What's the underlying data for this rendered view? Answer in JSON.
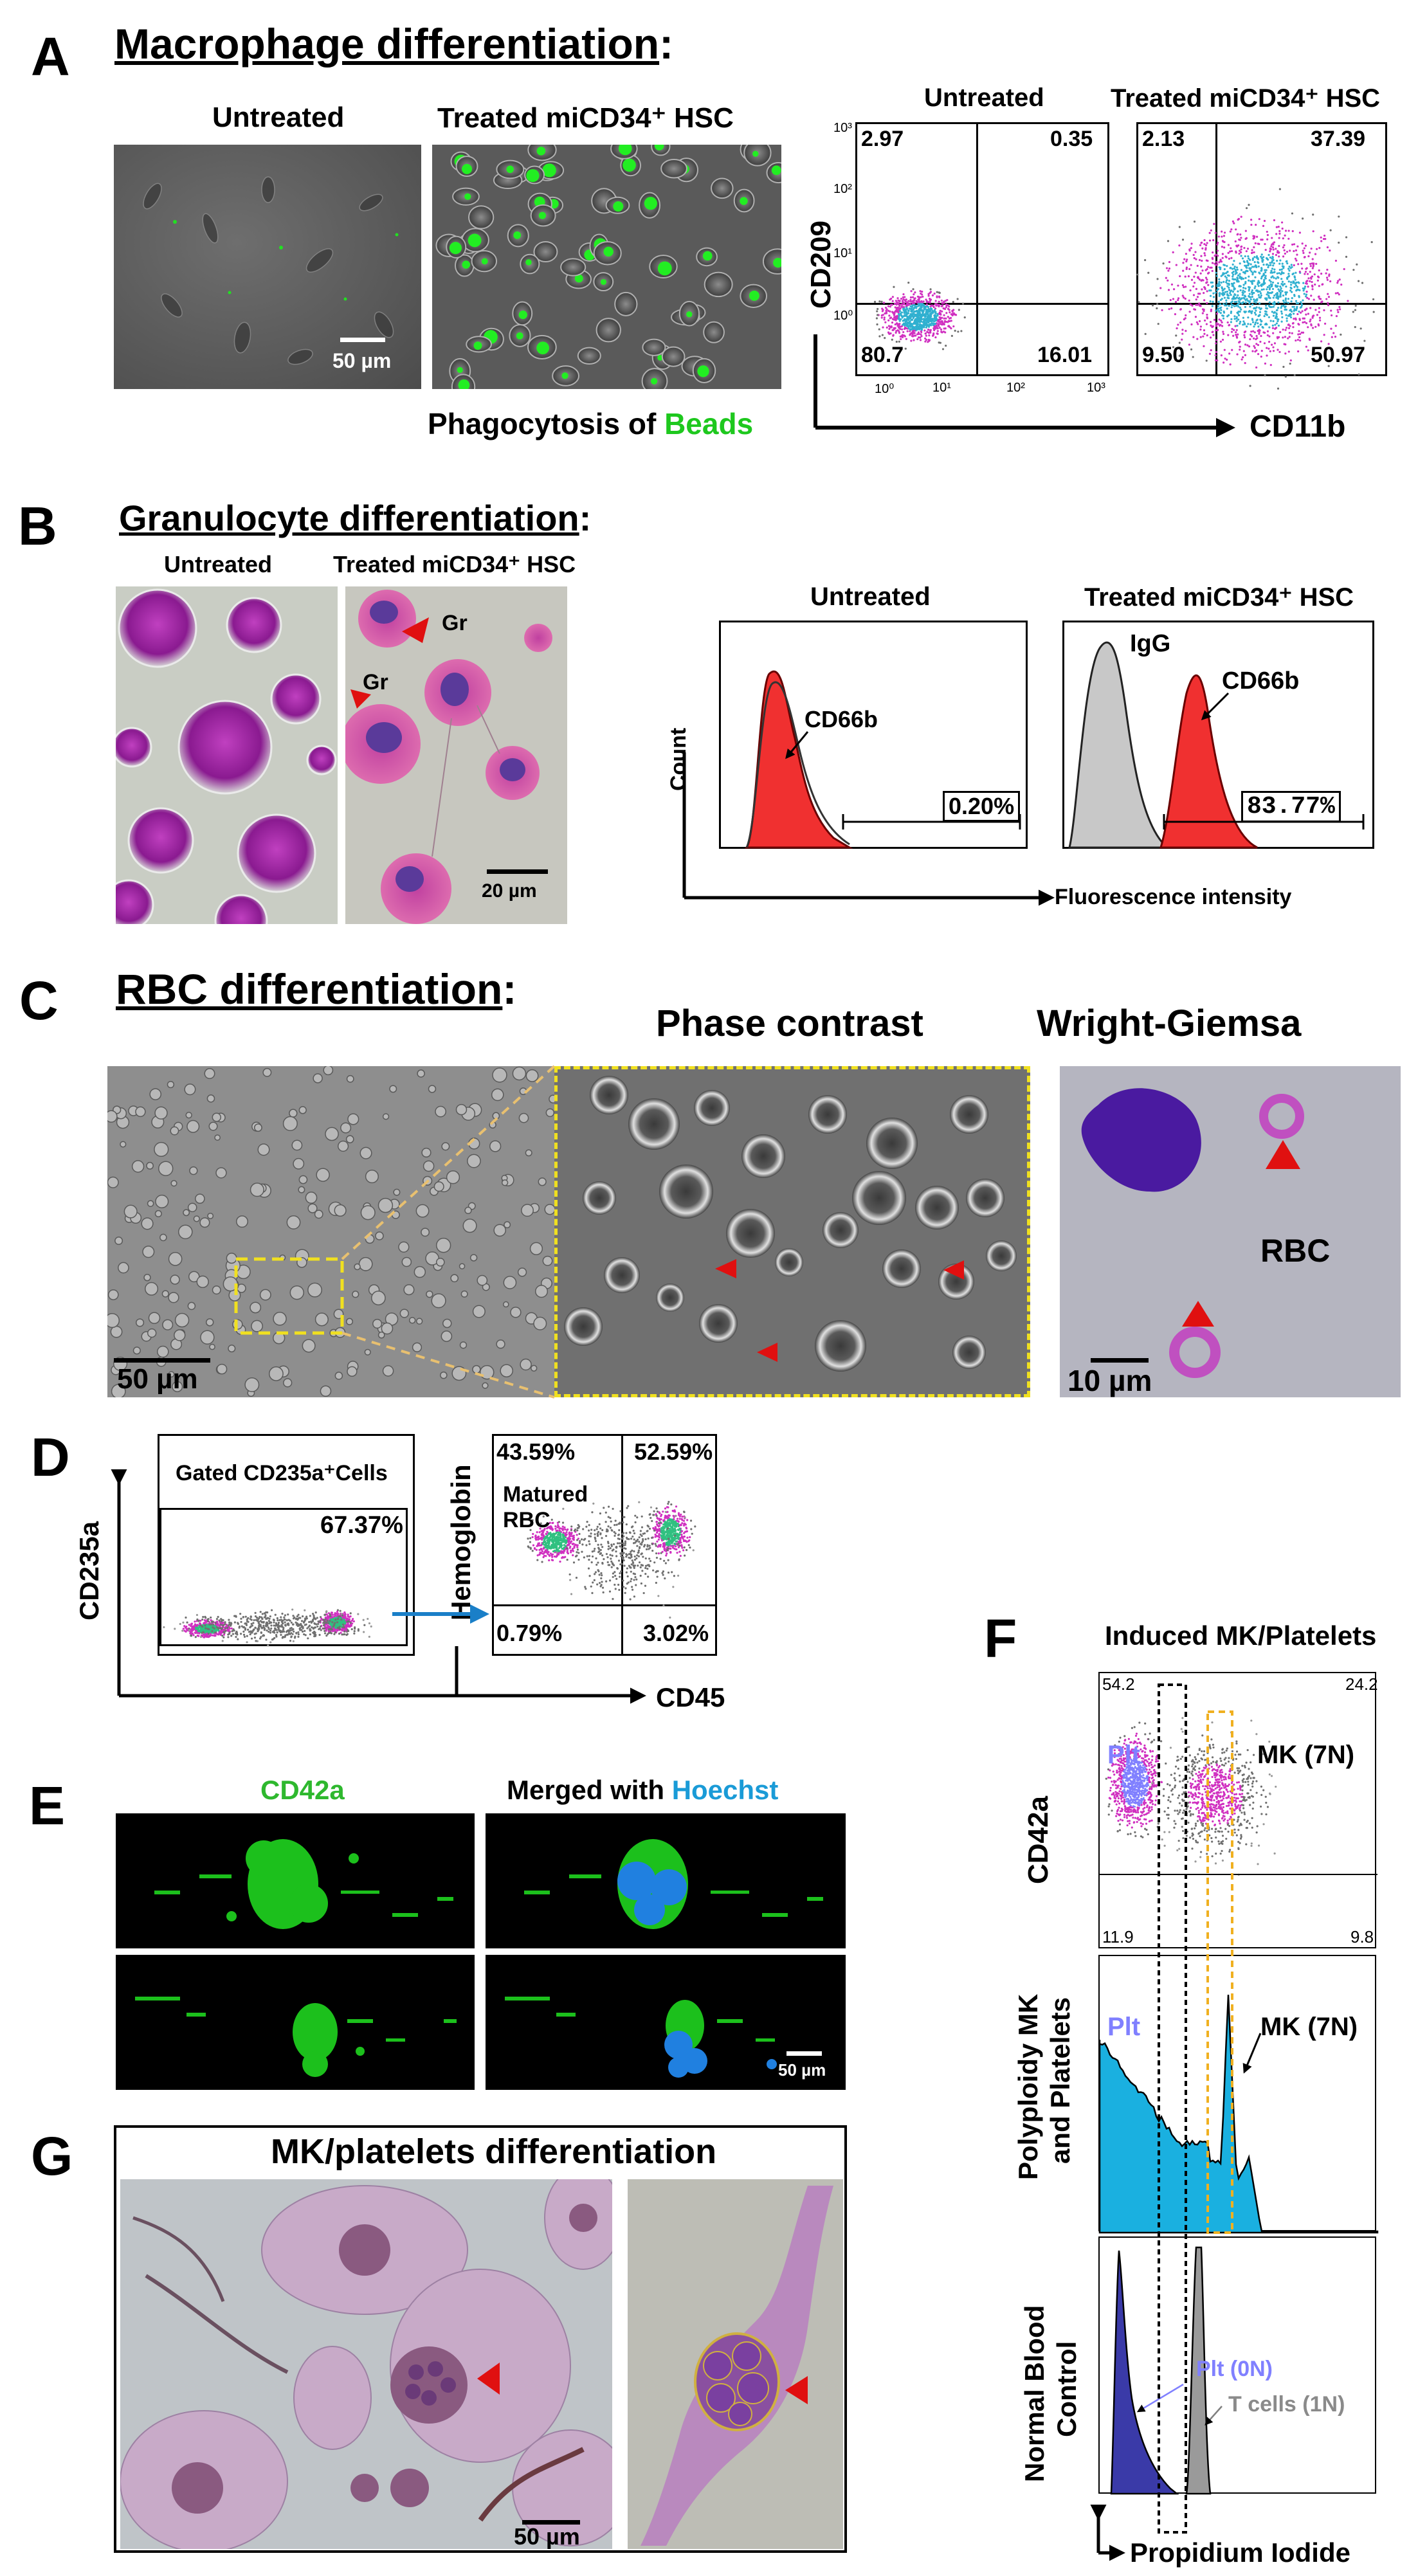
{
  "panels": {
    "A": {
      "letter": "A",
      "title": "Macrophage differentiation",
      "title_suffix": ":",
      "img_untreated_label": "Untreated",
      "img_treated_label": "Treated miCD34⁺ HSC",
      "scalebar_label": "50 µm",
      "caption_prefix": "Phagocytosis of ",
      "caption_highlight": "Beads",
      "flow_untreated_label": "Untreated",
      "flow_treated_label": "Treated miCD34⁺ HSC",
      "ylabel": "CD209",
      "xlabel": "CD11b",
      "yticks": [
        "10³",
        "10²",
        "10¹",
        "10⁰"
      ],
      "xticks": [
        "10⁰",
        "10¹",
        "10²",
        "10³"
      ],
      "untreated_quadrants": {
        "ul": "2.97",
        "ur": "0.35",
        "ll": "80.7",
        "lr": "16.01"
      },
      "treated_quadrants": {
        "ul": "2.13",
        "ur": "37.39",
        "ll": "9.50",
        "lr": "50.97"
      }
    },
    "B": {
      "letter": "B",
      "title": "Granulocyte differentiation",
      "title_suffix": ":",
      "img_untreated_label": "Untreated",
      "img_treated_label": "Treated miCD34⁺ HSC",
      "gr_label_1": "Gr",
      "gr_label_2": "Gr",
      "scalebar_label": "20 µm",
      "hist_untreated_label": "Untreated",
      "hist_treated_label": "Treated miCD34⁺ HSC",
      "ylabel": "Count",
      "xlabel": "Fluorescence intensity",
      "cd66b_label_1": "CD66b",
      "cd66b_label_2": "CD66b",
      "igg_label": "IgG",
      "untreated_pct": "0.20%",
      "treated_pct": "83.77%"
    },
    "C": {
      "letter": "C",
      "title": "RBC differentiation",
      "title_suffix": ":",
      "phase_label": "Phase contrast",
      "wright_label": "Wright-Giemsa",
      "scalebar_1": "50 µm",
      "scalebar_2": "10 µm",
      "rbc_label": "RBC"
    },
    "D": {
      "letter": "D",
      "gate_label": "Gated CD235a⁺Cells",
      "gate_pct": "67.37%",
      "ylabel_1": "CD235a",
      "ylabel_2": "Hemoglobin",
      "xlabel": "CD45",
      "matured_label_1": "Matured",
      "matured_label_2": "RBC",
      "quadrants": {
        "ul": "43.59%",
        "ur": "52.59%",
        "ll": "0.79%",
        "lr": "3.02%"
      }
    },
    "E": {
      "letter": "E",
      "label_cd42a": "CD42a",
      "label_merged_prefix": "Merged with ",
      "label_merged_highlight": "Hoechst",
      "scalebar": "50 µm"
    },
    "F": {
      "letter": "F",
      "title": "Induced MK/Platelets",
      "ylabel_top": "CD42a",
      "ylabel_mid_1": "Polyploidy MK",
      "ylabel_mid_2": "and Platelets",
      "ylabel_bot_1": "Normal Blood",
      "ylabel_bot_2": "Control",
      "xlabel": "Propidium Iodide",
      "plt_label_1": "Plt",
      "plt_label_2": "Plt",
      "mk_label_1": "MK (7N)",
      "mk_label_2": "MK (7N)",
      "plt0n_label": "Plt (0N)",
      "tcells_label": "T cells (1N)",
      "quadrants": {
        "ul": "54.2",
        "ur": "24.2",
        "ll": "11.9",
        "lr": "9.8"
      }
    },
    "G": {
      "letter": "G",
      "title": "MK/platelets differentiation",
      "scalebar": "50 µm"
    }
  },
  "colors": {
    "accent_green": "#1ec81e",
    "accent_blue": "#1a9bd7",
    "arrow_red": "#e01010",
    "hist_red": "#f03030",
    "hist_cyan": "#1ab0e0",
    "plt_blue": "#8080ff",
    "gate_yellow": "#f0b020"
  }
}
